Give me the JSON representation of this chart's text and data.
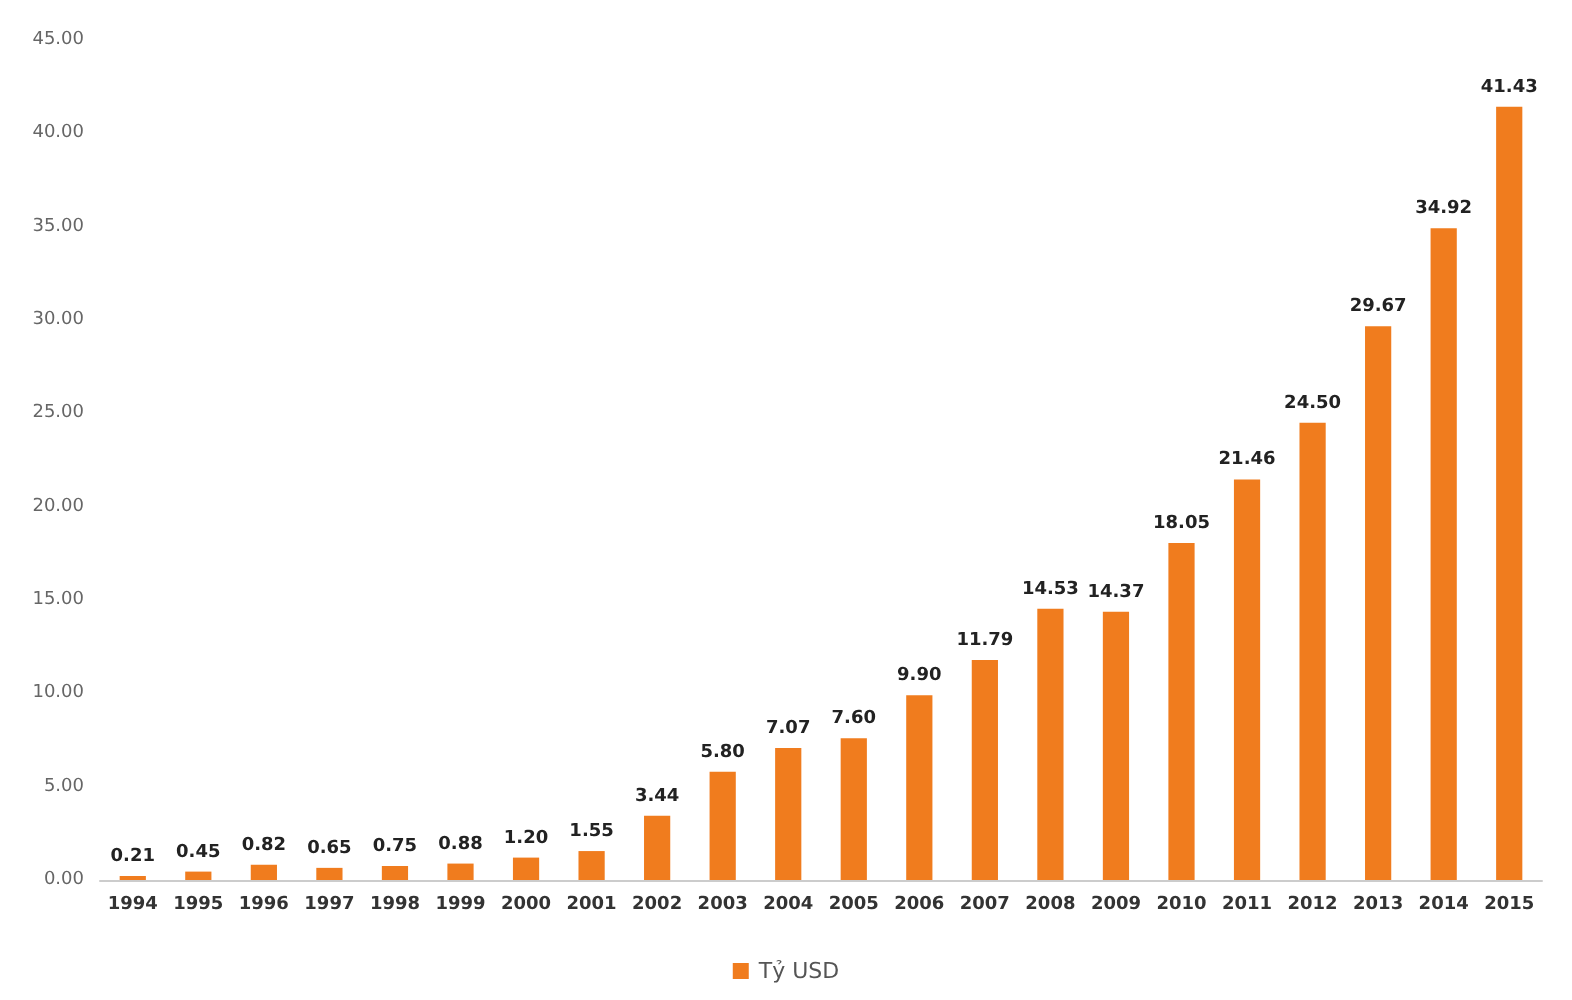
{
  "chart_data": {
    "type": "bar",
    "categories": [
      "1994",
      "1995",
      "1996",
      "1997",
      "1998",
      "1999",
      "2000",
      "2001",
      "2002",
      "2003",
      "2004",
      "2005",
      "2006",
      "2007",
      "2008",
      "2009",
      "2010",
      "2011",
      "2012",
      "2013",
      "2014",
      "2015"
    ],
    "series": [
      {
        "name": "Tỷ USD",
        "color": "#f07c1e",
        "values": [
          0.21,
          0.45,
          0.82,
          0.65,
          0.75,
          0.88,
          1.2,
          1.55,
          3.44,
          5.8,
          7.07,
          7.6,
          9.9,
          11.79,
          14.53,
          14.37,
          18.05,
          21.46,
          24.5,
          29.67,
          34.92,
          41.43
        ],
        "value_labels": [
          "0.21",
          "0.45",
          "0.82",
          "0.65",
          "0.75",
          "0.88",
          "1.20",
          "1.55",
          "3.44",
          "5.80",
          "7.07",
          "7.60",
          "9.90",
          "11.79",
          "14.53",
          "14.37",
          "18.05",
          "21.46",
          "24.50",
          "29.67",
          "34.92",
          "41.43"
        ]
      }
    ],
    "ylim": [
      0,
      45
    ],
    "yticks": [
      {
        "value": 0,
        "label": "0.00"
      },
      {
        "value": 5,
        "label": "5.00"
      },
      {
        "value": 10,
        "label": "10.00"
      },
      {
        "value": 15,
        "label": "15.00"
      },
      {
        "value": 20,
        "label": "20.00"
      },
      {
        "value": 25,
        "label": "25.00"
      },
      {
        "value": 30,
        "label": "30.00"
      },
      {
        "value": 35,
        "label": "35.00"
      },
      {
        "value": 40,
        "label": "40.00"
      },
      {
        "value": 45,
        "label": "45.00"
      }
    ],
    "grid": false,
    "legend": "bottom"
  }
}
